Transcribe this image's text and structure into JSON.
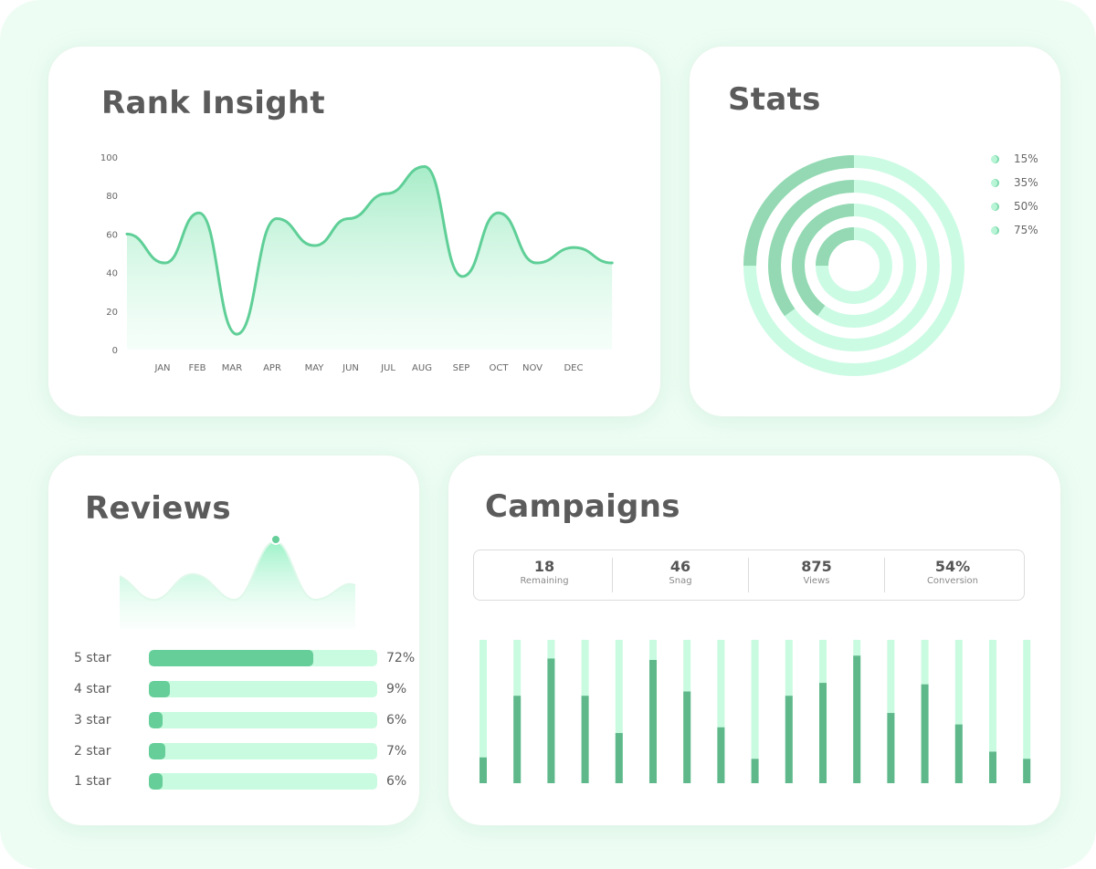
{
  "colors": {
    "accent": "#66ce99",
    "accent_light": "#c9fbe0",
    "background": "#eefdf4",
    "card": "#ffffff"
  },
  "rank_insight": {
    "title": "Rank Insight",
    "chart_data": {
      "type": "area",
      "title": "Rank Insight",
      "xlabel": "",
      "ylabel": "",
      "ylim": [
        0,
        100
      ],
      "yticks": [
        "0",
        "20",
        "40",
        "60",
        "80",
        "100"
      ],
      "categories": [
        "JAN",
        "FEB",
        "MAR",
        "APR",
        "MAY",
        "JUN",
        "JUL",
        "AUG",
        "SEP",
        "OCT",
        "NOV",
        "DEC"
      ],
      "points": [
        {
          "x": 0.0,
          "y": 60
        },
        {
          "x": 1.0,
          "y": 45
        },
        {
          "x": 1.9,
          "y": 71
        },
        {
          "x": 2.9,
          "y": 8
        },
        {
          "x": 3.95,
          "y": 68
        },
        {
          "x": 4.95,
          "y": 54
        },
        {
          "x": 5.85,
          "y": 68
        },
        {
          "x": 6.85,
          "y": 81
        },
        {
          "x": 7.85,
          "y": 95
        },
        {
          "x": 8.85,
          "y": 38
        },
        {
          "x": 9.8,
          "y": 71
        },
        {
          "x": 10.8,
          "y": 45
        },
        {
          "x": 11.8,
          "y": 53
        },
        {
          "x": 12.8,
          "y": 45
        }
      ]
    }
  },
  "stats": {
    "title": "Stats",
    "chart_data": {
      "type": "pie",
      "style": "concentric-rings",
      "legend_position": "right",
      "series": [
        {
          "label": "15%",
          "value": 15
        },
        {
          "label": "35%",
          "value": 35
        },
        {
          "label": "50%",
          "value": 50
        },
        {
          "label": "75%",
          "value": 75
        }
      ],
      "ring_fill_fractions_outer_to_inner": [
        0.25,
        0.35,
        0.4,
        0.25
      ]
    },
    "legend": [
      "15%",
      "35%",
      "50%",
      "75%"
    ]
  },
  "reviews": {
    "title": "Reviews",
    "sparkline_peak_fraction": 0.68,
    "rows": [
      {
        "label": "5 star",
        "percent": "72%",
        "value": 72
      },
      {
        "label": "4 star",
        "percent": "9%",
        "value": 9
      },
      {
        "label": "3 star",
        "percent": "6%",
        "value": 6
      },
      {
        "label": "2 star",
        "percent": "7%",
        "value": 7
      },
      {
        "label": "1 star",
        "percent": "6%",
        "value": 6
      }
    ]
  },
  "campaigns": {
    "title": "Campaigns",
    "metrics": [
      {
        "value": "18",
        "label": "Remaining"
      },
      {
        "value": "46",
        "label": "Snag"
      },
      {
        "value": "875",
        "label": "Views"
      },
      {
        "value": "54%",
        "label": "Conversion"
      }
    ],
    "chart_data": {
      "type": "bar",
      "stacked_track": true,
      "values": [
        18,
        61,
        87,
        61,
        35,
        86,
        64,
        39,
        17,
        61,
        70,
        89,
        49,
        69,
        41,
        22,
        17
      ],
      "ylim": [
        0,
        100
      ]
    }
  }
}
